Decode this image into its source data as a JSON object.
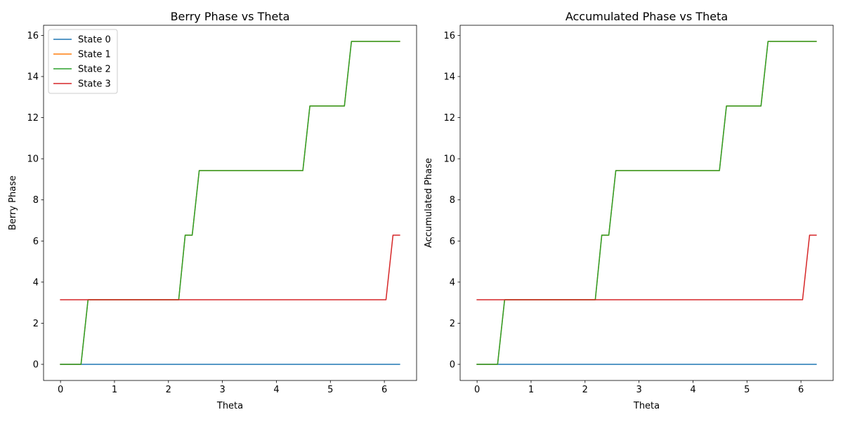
{
  "chart_data": [
    {
      "type": "line",
      "title": "Berry Phase vs Theta",
      "xlabel": "Theta",
      "ylabel": "Berry Phase",
      "xlim": [
        -0.314,
        6.597
      ],
      "ylim": [
        -0.785,
        16.493
      ],
      "xticks": [
        0,
        1,
        2,
        3,
        4,
        5,
        6
      ],
      "yticks": [
        0,
        2,
        4,
        6,
        8,
        10,
        12,
        14,
        16
      ],
      "grid": false,
      "legend": "top-left",
      "series": [
        {
          "name": "State 0",
          "color": "#1f77b4",
          "x": [
            0,
            6.283
          ],
          "y": [
            0,
            0
          ]
        },
        {
          "name": "State 1",
          "color": "#ff7f0e",
          "x": [
            0,
            0.38,
            0.51,
            2.19,
            2.31,
            2.44,
            2.57,
            4.49,
            4.62,
            5.26,
            5.39,
            6.283
          ],
          "y": [
            0,
            0,
            3.1416,
            3.1416,
            6.2832,
            6.2832,
            9.4248,
            9.4248,
            12.566,
            12.566,
            15.708,
            15.708
          ]
        },
        {
          "name": "State 2",
          "color": "#2ca02c",
          "x": [
            0,
            0.38,
            0.51,
            2.19,
            2.31,
            2.44,
            2.57,
            4.49,
            4.62,
            5.26,
            5.39,
            6.283
          ],
          "y": [
            0,
            0,
            3.1416,
            3.1416,
            6.2832,
            6.2832,
            9.4248,
            9.4248,
            12.566,
            12.566,
            15.708,
            15.708
          ]
        },
        {
          "name": "State 3",
          "color": "#d62728",
          "x": [
            0,
            6.03,
            6.16,
            6.283
          ],
          "y": [
            3.1416,
            3.1416,
            6.2832,
            6.2832
          ]
        }
      ]
    },
    {
      "type": "line",
      "title": "Accumulated Phase vs Theta",
      "xlabel": "Theta",
      "ylabel": "Accumulated Phase",
      "xlim": [
        -0.314,
        6.597
      ],
      "ylim": [
        -0.785,
        16.493
      ],
      "xticks": [
        0,
        1,
        2,
        3,
        4,
        5,
        6
      ],
      "yticks": [
        0,
        2,
        4,
        6,
        8,
        10,
        12,
        14,
        16
      ],
      "grid": false,
      "series": [
        {
          "color": "#1f77b4",
          "x": [
            0,
            6.283
          ],
          "y": [
            0,
            0
          ]
        },
        {
          "color": "#ff7f0e",
          "x": [
            0,
            0.38,
            0.51,
            2.19,
            2.31,
            2.44,
            2.57,
            4.49,
            4.62,
            5.26,
            5.39,
            6.283
          ],
          "y": [
            0,
            0,
            3.1416,
            3.1416,
            6.2832,
            6.2832,
            9.4248,
            9.4248,
            12.566,
            12.566,
            15.708,
            15.708
          ]
        },
        {
          "color": "#2ca02c",
          "x": [
            0,
            0.38,
            0.51,
            2.19,
            2.31,
            2.44,
            2.57,
            4.49,
            4.62,
            5.26,
            5.39,
            6.283
          ],
          "y": [
            0,
            0,
            3.1416,
            3.1416,
            6.2832,
            6.2832,
            9.4248,
            9.4248,
            12.566,
            12.566,
            15.708,
            15.708
          ]
        },
        {
          "color": "#d62728",
          "x": [
            0,
            6.03,
            6.16,
            6.283
          ],
          "y": [
            3.1416,
            3.1416,
            6.2832,
            6.2832
          ]
        }
      ]
    }
  ]
}
